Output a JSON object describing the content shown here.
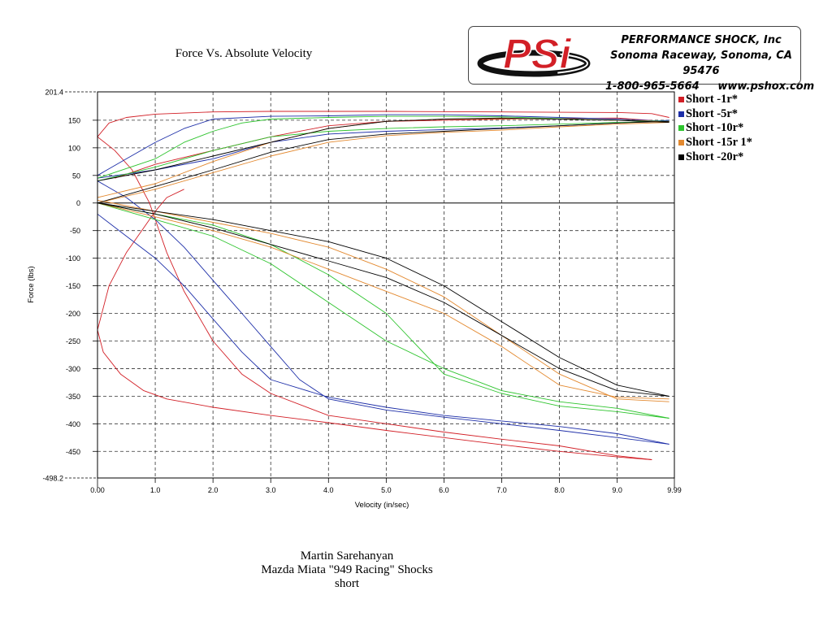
{
  "header": {
    "title": "Force Vs. Absolute Velocity",
    "company_lines": [
      "PERFORMANCE SHOCK, Inc",
      "Sonoma Raceway, Sonoma, CA 95476",
      "1-800-965-5664     www.pshox.com"
    ],
    "logo_text": "PSi",
    "logo_color": "#d21f26"
  },
  "footer": {
    "lines": [
      "Martin Sarehanyan",
      "Mazda Miata \"949 Racing\" Shocks",
      "short"
    ]
  },
  "chart_data": {
    "type": "line",
    "title": "Force Vs. Absolute Velocity",
    "xlabel": "Velocity (in/sec)",
    "ylabel": "Force (lbs)",
    "xlim": [
      0,
      9.99
    ],
    "ylim": [
      -498.2,
      201.4
    ],
    "xticks": [
      0,
      1,
      2,
      3,
      4,
      5,
      6,
      7,
      8,
      9,
      9.99
    ],
    "xtick_labels": [
      "0.00",
      "1.0",
      "2.0",
      "3.0",
      "4.0",
      "5.0",
      "6.0",
      "7.0",
      "8.0",
      "9.0",
      "9.99"
    ],
    "yticks": [
      201.4,
      150,
      100,
      50,
      0,
      -50,
      -100,
      -150,
      -200,
      -250,
      -300,
      -350,
      -400,
      -450,
      -498.2
    ],
    "ytick_labels": [
      "201.4",
      "150",
      "100",
      "50",
      "0",
      "-50",
      "-100",
      "-150",
      "-200",
      "-250",
      "-300",
      "-350",
      "-400",
      "-450",
      "-498.2"
    ],
    "grid": true,
    "legend_position": "right",
    "series": [
      {
        "name": "Short -1r*",
        "color": "#d21f26",
        "lines": [
          [
            [
              0,
              -230
            ],
            [
              0.1,
              -270
            ],
            [
              0.4,
              -310
            ],
            [
              0.8,
              -340
            ],
            [
              1.2,
              -355
            ],
            [
              2,
              -370
            ],
            [
              3,
              -385
            ],
            [
              4,
              -398
            ],
            [
              5,
              -412
            ],
            [
              6,
              -425
            ],
            [
              7,
              -438
            ],
            [
              8,
              -450
            ],
            [
              9,
              -460
            ],
            [
              9.6,
              -465
            ]
          ],
          [
            [
              9.6,
              -465
            ],
            [
              9,
              -458
            ],
            [
              8,
              -440
            ],
            [
              7,
              -428
            ],
            [
              6,
              -415
            ],
            [
              5,
              -400
            ],
            [
              4,
              -385
            ],
            [
              3,
              -345
            ],
            [
              2.5,
              -310
            ],
            [
              2,
              -250
            ],
            [
              1.5,
              -160
            ],
            [
              1.2,
              -90
            ],
            [
              1,
              -30
            ],
            [
              0.9,
              0
            ],
            [
              0.6,
              60
            ],
            [
              0.3,
              95
            ],
            [
              0,
              120
            ]
          ],
          [
            [
              0,
              -230
            ],
            [
              0.2,
              -150
            ],
            [
              0.5,
              -90
            ],
            [
              0.8,
              -45
            ],
            [
              1,
              -15
            ],
            [
              1.2,
              10
            ],
            [
              1.5,
              25
            ]
          ],
          [
            [
              0,
              120
            ],
            [
              0.2,
              145
            ],
            [
              0.5,
              155
            ],
            [
              1,
              161
            ],
            [
              2,
              165
            ],
            [
              3,
              166
            ],
            [
              5,
              166
            ],
            [
              7,
              165
            ],
            [
              9,
              164
            ],
            [
              9.6,
              162
            ],
            [
              9.9,
              155
            ]
          ],
          [
            [
              0.3,
              45
            ],
            [
              1,
              70
            ],
            [
              2,
              95
            ],
            [
              3,
              120
            ],
            [
              4,
              140
            ],
            [
              5,
              148
            ],
            [
              6,
              150
            ],
            [
              7,
              152
            ],
            [
              8,
              153
            ],
            [
              9,
              154
            ],
            [
              9.8,
              148
            ]
          ]
        ]
      },
      {
        "name": "Short -5r*",
        "color": "#1d2ea8",
        "lines": [
          [
            [
              0,
              50
            ],
            [
              0.5,
              80
            ],
            [
              1,
              110
            ],
            [
              1.5,
              135
            ],
            [
              2,
              152
            ],
            [
              3,
              157
            ],
            [
              4,
              158
            ],
            [
              5,
              160
            ],
            [
              6,
              160
            ],
            [
              7,
              158
            ],
            [
              8,
              155
            ],
            [
              9,
              152
            ],
            [
              9.9,
              148
            ]
          ],
          [
            [
              0,
              -20
            ],
            [
              0.5,
              -60
            ],
            [
              1,
              -100
            ],
            [
              1.5,
              -150
            ],
            [
              2,
              -210
            ],
            [
              2.5,
              -270
            ],
            [
              3,
              -320
            ],
            [
              4,
              -352
            ],
            [
              5,
              -370
            ],
            [
              6,
              -385
            ],
            [
              7,
              -395
            ],
            [
              8,
              -405
            ],
            [
              9,
              -418
            ],
            [
              9.9,
              -437
            ]
          ],
          [
            [
              9.9,
              -437
            ],
            [
              9,
              -425
            ],
            [
              8,
              -412
            ],
            [
              7,
              -400
            ],
            [
              6,
              -388
            ],
            [
              5,
              -375
            ],
            [
              4,
              -355
            ],
            [
              3.5,
              -320
            ],
            [
              3,
              -260
            ],
            [
              2.5,
              -200
            ],
            [
              2,
              -140
            ],
            [
              1.5,
              -80
            ],
            [
              1,
              -30
            ],
            [
              0.5,
              10
            ],
            [
              0,
              40
            ]
          ],
          [
            [
              0,
              45
            ],
            [
              1,
              60
            ],
            [
              2,
              80
            ],
            [
              3,
              110
            ],
            [
              4,
              125
            ],
            [
              5,
              130
            ],
            [
              6,
              133
            ],
            [
              7,
              136
            ],
            [
              8,
              140
            ],
            [
              9,
              145
            ],
            [
              9.9,
              150
            ]
          ]
        ]
      },
      {
        "name": "Short -10r*",
        "color": "#2ec42e",
        "lines": [
          [
            [
              0,
              45
            ],
            [
              1,
              80
            ],
            [
              1.5,
              110
            ],
            [
              2,
              130
            ],
            [
              2.5,
              145
            ],
            [
              3,
              152
            ],
            [
              4,
              155
            ],
            [
              5,
              157
            ],
            [
              6,
              157
            ],
            [
              7,
              156
            ],
            [
              8,
              153
            ],
            [
              9,
              150
            ],
            [
              9.9,
              148
            ]
          ],
          [
            [
              0,
              0
            ],
            [
              1,
              -30
            ],
            [
              2,
              -60
            ],
            [
              3,
              -110
            ],
            [
              4,
              -180
            ],
            [
              5,
              -250
            ],
            [
              6,
              -300
            ],
            [
              7,
              -340
            ],
            [
              8,
              -360
            ],
            [
              9,
              -372
            ],
            [
              9.9,
              -390
            ]
          ],
          [
            [
              9.9,
              -390
            ],
            [
              9,
              -378
            ],
            [
              8,
              -368
            ],
            [
              7,
              -345
            ],
            [
              6,
              -310
            ],
            [
              5,
              -200
            ],
            [
              4,
              -130
            ],
            [
              3,
              -75
            ],
            [
              2,
              -40
            ],
            [
              1,
              -20
            ],
            [
              0,
              0
            ]
          ],
          [
            [
              0,
              40
            ],
            [
              1,
              65
            ],
            [
              2,
              95
            ],
            [
              3,
              120
            ],
            [
              4,
              130
            ],
            [
              5,
              135
            ],
            [
              6,
              138
            ],
            [
              7,
              140
            ],
            [
              8,
              143
            ],
            [
              9,
              146
            ],
            [
              9.9,
              148
            ]
          ]
        ]
      },
      {
        "name": "Short -15r 1*",
        "color": "#e3892f",
        "lines": [
          [
            [
              0,
              0
            ],
            [
              1,
              25
            ],
            [
              2,
              55
            ],
            [
              3,
              85
            ],
            [
              4,
              110
            ],
            [
              5,
              122
            ],
            [
              6,
              128
            ],
            [
              7,
              132
            ],
            [
              8,
              138
            ],
            [
              9,
              143
            ],
            [
              9.9,
              146
            ]
          ],
          [
            [
              0,
              0
            ],
            [
              1,
              -25
            ],
            [
              2,
              -50
            ],
            [
              3,
              -80
            ],
            [
              4,
              -120
            ],
            [
              5,
              -160
            ],
            [
              6,
              -200
            ],
            [
              7,
              -260
            ],
            [
              8,
              -330
            ],
            [
              9,
              -352
            ],
            [
              9.9,
              -355
            ]
          ],
          [
            [
              9.9,
              -360
            ],
            [
              9,
              -355
            ],
            [
              8,
              -310
            ],
            [
              7,
              -240
            ],
            [
              6,
              -170
            ],
            [
              5,
              -120
            ],
            [
              4,
              -80
            ],
            [
              3,
              -55
            ],
            [
              2,
              -35
            ],
            [
              1,
              -15
            ],
            [
              0,
              5
            ]
          ],
          [
            [
              0,
              10
            ],
            [
              1,
              35
            ],
            [
              2,
              75
            ],
            [
              3,
              110
            ],
            [
              4,
              135
            ],
            [
              5,
              148
            ],
            [
              6,
              152
            ],
            [
              7,
              153
            ],
            [
              8,
              152
            ],
            [
              9,
              150
            ],
            [
              9.9,
              147
            ]
          ]
        ]
      },
      {
        "name": "Short -20r*",
        "color": "#000000",
        "lines": [
          [
            [
              0,
              0
            ],
            [
              1,
              30
            ],
            [
              2,
              60
            ],
            [
              3,
              92
            ],
            [
              4,
              115
            ],
            [
              5,
              125
            ],
            [
              6,
              130
            ],
            [
              7,
              135
            ],
            [
              8,
              140
            ],
            [
              9,
              145
            ],
            [
              9.9,
              148
            ]
          ],
          [
            [
              0,
              0
            ],
            [
              1,
              -20
            ],
            [
              2,
              -45
            ],
            [
              3,
              -75
            ],
            [
              4,
              -105
            ],
            [
              5,
              -135
            ],
            [
              6,
              -180
            ],
            [
              7,
              -240
            ],
            [
              8,
              -300
            ],
            [
              9,
              -340
            ],
            [
              9.9,
              -350
            ]
          ],
          [
            [
              9.9,
              -350
            ],
            [
              9,
              -330
            ],
            [
              8,
              -280
            ],
            [
              7,
              -215
            ],
            [
              6,
              -150
            ],
            [
              5,
              -100
            ],
            [
              4,
              -70
            ],
            [
              3,
              -50
            ],
            [
              2,
              -30
            ],
            [
              1,
              -15
            ],
            [
              0,
              0
            ]
          ],
          [
            [
              0,
              40
            ],
            [
              1,
              60
            ],
            [
              2,
              85
            ],
            [
              3,
              110
            ],
            [
              4,
              135
            ],
            [
              5,
              148
            ],
            [
              6,
              152
            ],
            [
              7,
              154
            ],
            [
              8,
              152
            ],
            [
              9,
              150
            ],
            [
              9.9,
              146
            ]
          ]
        ]
      }
    ]
  }
}
